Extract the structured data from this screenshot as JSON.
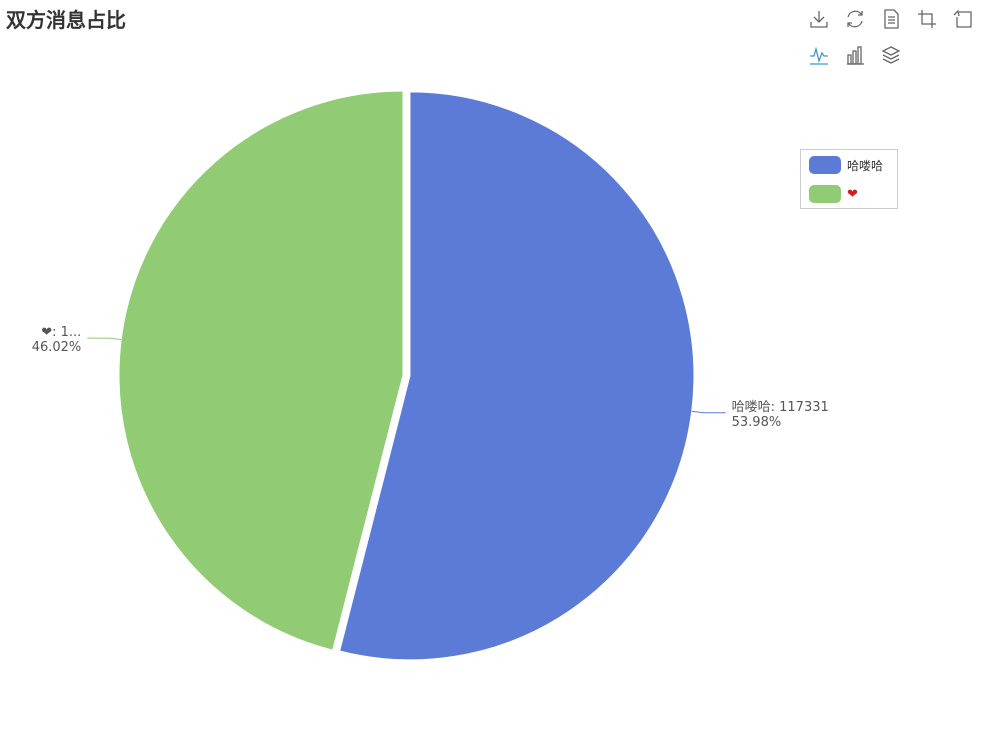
{
  "title": "双方消息占比",
  "toolbox": {
    "items": [
      {
        "name": "save-image-icon"
      },
      {
        "name": "restore-icon"
      },
      {
        "name": "data-view-icon"
      },
      {
        "name": "data-zoom-icon"
      },
      {
        "name": "zoom-back-icon"
      },
      {
        "name": "line-chart-icon"
      },
      {
        "name": "bar-chart-icon"
      },
      {
        "name": "stack-icon"
      }
    ],
    "active_color": "#3e98c5",
    "color": "#666666"
  },
  "legend": {
    "items": [
      {
        "label": "哈喽哈",
        "color": "#5b7bd6"
      },
      {
        "label": "❤",
        "color": "#91cb74"
      }
    ]
  },
  "chart_data": {
    "type": "pie",
    "title": "双方消息占比",
    "slices": [
      {
        "name": "哈喽哈",
        "value": 117331,
        "percent": "53.98%",
        "label": "哈喽哈: 117331",
        "color": "#5b7bd6"
      },
      {
        "name": "❤",
        "percent": "46.02%",
        "label": "❤: 1...",
        "color": "#91cb74"
      }
    ],
    "legend_position": "right"
  }
}
